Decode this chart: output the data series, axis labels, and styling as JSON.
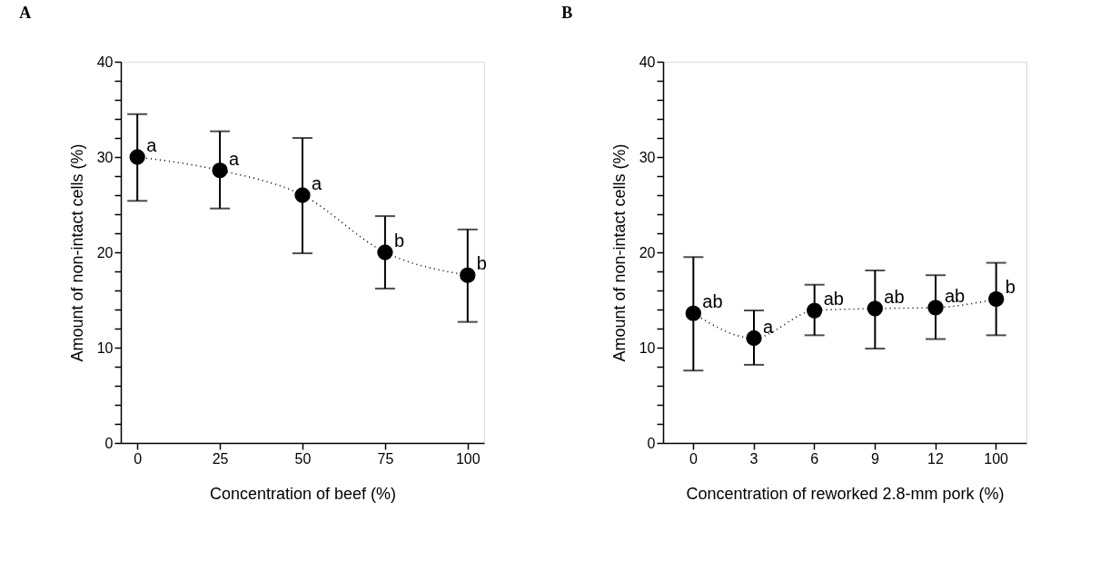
{
  "chart_data": [
    {
      "type": "line",
      "title": "A",
      "xlabel": "Concentration of beef (%)",
      "ylabel": "Amount of non-intact cells (%)",
      "x": [
        0,
        25,
        50,
        75,
        100
      ],
      "series": [
        {
          "color": "#000000",
          "values": [
            30,
            28.6,
            26,
            20,
            17.6
          ],
          "errors": [
            [
              25.4,
              34.5
            ],
            [
              24.6,
              32.7
            ],
            [
              19.9,
              32.0
            ],
            [
              16.2,
              23.8
            ],
            [
              12.7,
              22.4
            ]
          ]
        }
      ],
      "xlim": [
        -5,
        105
      ],
      "xticks": [
        0,
        25,
        50,
        75,
        100
      ],
      "ylim": [
        0,
        40
      ],
      "yticks": [
        0,
        {
          "value": 2,
          "label": null
        },
        {
          "value": 4,
          "label": null
        },
        {
          "value": 6,
          "label": null
        },
        {
          "value": 8,
          "label": null
        },
        10,
        {
          "value": 12,
          "label": null
        },
        {
          "value": 14,
          "label": null
        },
        {
          "value": 16,
          "label": null
        },
        {
          "value": 18,
          "label": null
        },
        20,
        {
          "value": 22,
          "label": null
        },
        {
          "value": 24,
          "label": null
        },
        {
          "value": 26,
          "label": null
        },
        {
          "value": 28,
          "label": null
        },
        30,
        {
          "value": 32,
          "label": null
        },
        {
          "value": 34,
          "label": null
        },
        {
          "value": 36,
          "label": null
        },
        {
          "value": 38,
          "label": null
        },
        40
      ],
      "marker": "circle",
      "line_style": "dotted",
      "grid": false,
      "annotations": [
        {
          "text": "a",
          "x": 0,
          "y": 30
        },
        {
          "text": "a",
          "x": 25,
          "y": 28.6
        },
        {
          "text": "a",
          "x": 50,
          "y": 26
        },
        {
          "text": "b",
          "x": 75,
          "y": 20
        },
        {
          "text": "b",
          "x": 100,
          "y": 17.6
        }
      ]
    },
    {
      "type": "line",
      "title": "B",
      "xlabel": "Concentration of reworked 2.8-mm pork (%)",
      "ylabel": "Amount of non-intact cells (%)",
      "categories": [
        "0",
        "3",
        "6",
        "9",
        "12",
        "100"
      ],
      "series": [
        {
          "color": "#000000",
          "values": [
            13.6,
            11.0,
            13.9,
            14.1,
            14.2,
            15.1
          ],
          "errors": [
            [
              7.6,
              19.5
            ],
            [
              8.2,
              13.9
            ],
            [
              11.3,
              16.6
            ],
            [
              9.9,
              18.1
            ],
            [
              10.9,
              17.6
            ],
            [
              11.3,
              18.9
            ]
          ]
        }
      ],
      "ylim": [
        0,
        40
      ],
      "yticks": [
        0,
        {
          "value": 2,
          "label": null
        },
        {
          "value": 4,
          "label": null
        },
        {
          "value": 6,
          "label": null
        },
        {
          "value": 8,
          "label": null
        },
        10,
        {
          "value": 12,
          "label": null
        },
        {
          "value": 14,
          "label": null
        },
        {
          "value": 16,
          "label": null
        },
        {
          "value": 18,
          "label": null
        },
        20,
        {
          "value": 22,
          "label": null
        },
        {
          "value": 24,
          "label": null
        },
        {
          "value": 26,
          "label": null
        },
        {
          "value": 28,
          "label": null
        },
        30,
        {
          "value": 32,
          "label": null
        },
        {
          "value": 34,
          "label": null
        },
        {
          "value": 36,
          "label": null
        },
        {
          "value": 38,
          "label": null
        },
        40
      ],
      "marker": "circle",
      "line_style": "dotted",
      "grid": false,
      "annotations": [
        {
          "text": "ab",
          "x": "0",
          "y": 13.6
        },
        {
          "text": "a",
          "x": "3",
          "y": 11.0
        },
        {
          "text": "ab",
          "x": "6",
          "y": 13.9
        },
        {
          "text": "ab",
          "x": "9",
          "y": 14.1
        },
        {
          "text": "ab",
          "x": "12",
          "y": 14.2
        },
        {
          "text": "b",
          "x": "100",
          "y": 15.1
        }
      ]
    }
  ]
}
